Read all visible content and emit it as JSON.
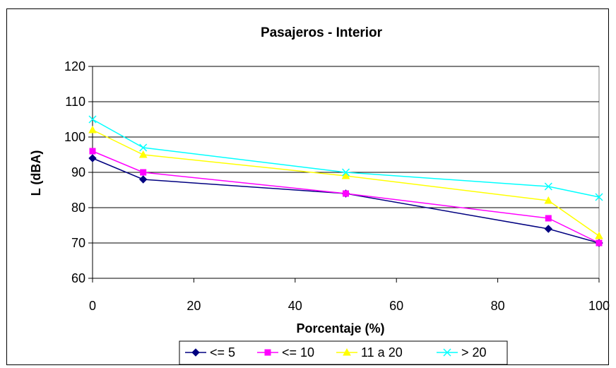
{
  "chart_data": {
    "type": "line",
    "title": "Pasajeros - Interior",
    "xlabel": "Porcentaje (%)",
    "ylabel": "L (dBA)",
    "x": [
      0,
      10,
      50,
      90,
      100
    ],
    "xlim": [
      0,
      100
    ],
    "ylim": [
      60,
      120
    ],
    "xticks": [
      0,
      20,
      40,
      60,
      80,
      100
    ],
    "yticks": [
      60,
      70,
      80,
      90,
      100,
      110,
      120
    ],
    "grid": "horizontal",
    "legend_position": "bottom",
    "series": [
      {
        "name": "<= 5",
        "color": "#000080",
        "marker": "diamond",
        "values": [
          94,
          88,
          84,
          74,
          70
        ]
      },
      {
        "name": "<= 10",
        "color": "#FF00FF",
        "marker": "square",
        "values": [
          96,
          90,
          84,
          77,
          70
        ]
      },
      {
        "name": "11 a 20",
        "color": "#FFFF00",
        "marker": "triangle",
        "values": [
          102,
          95,
          89,
          82,
          72
        ]
      },
      {
        "name": "> 20",
        "color": "#00FFFF",
        "marker": "x",
        "values": [
          105,
          97,
          90,
          86,
          83
        ]
      }
    ]
  }
}
